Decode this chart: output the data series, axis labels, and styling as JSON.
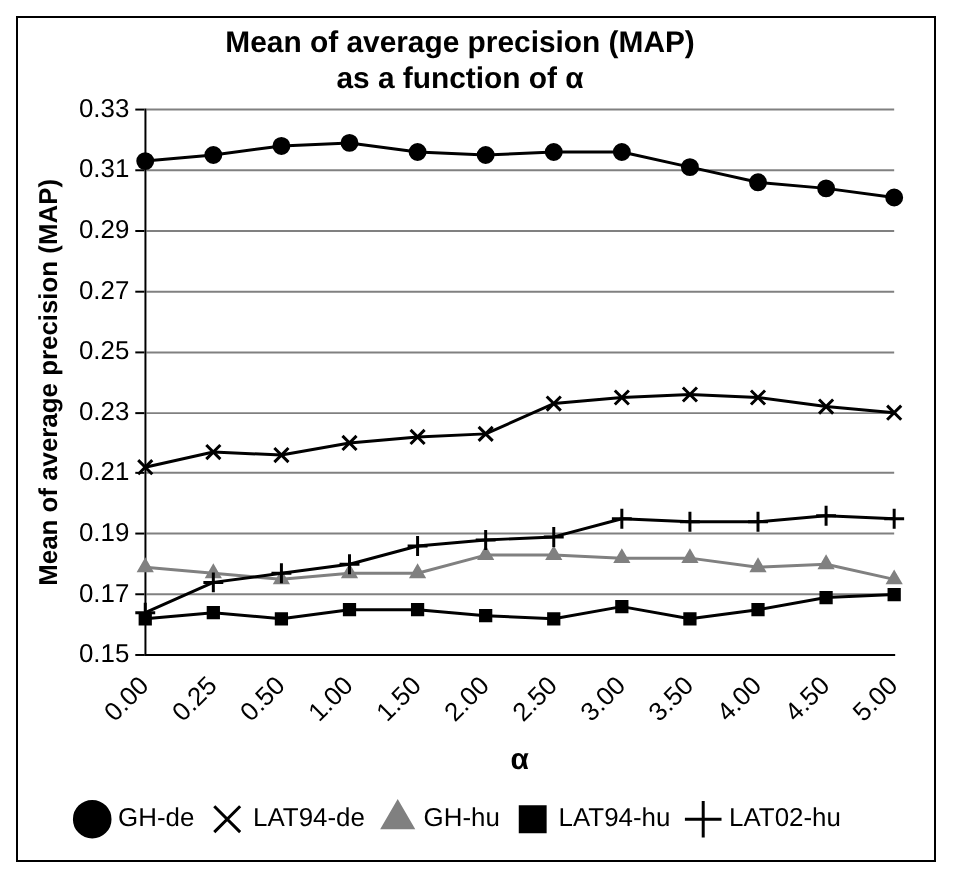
{
  "chart_data": {
    "type": "line",
    "title": "Mean of average precision (MAP)\nas a function of α",
    "xlabel": "α",
    "ylabel": "Mean of average precision (MAP)",
    "categories": [
      "0.00",
      "0.25",
      "0.50",
      "1.00",
      "1.50",
      "2.00",
      "2.50",
      "3.00",
      "3.50",
      "4.00",
      "4.50",
      "5.00"
    ],
    "ylim": [
      0.15,
      0.33
    ],
    "yticks": [
      0.15,
      0.17,
      0.19,
      0.21,
      0.23,
      0.25,
      0.27,
      0.29,
      0.31,
      0.33
    ],
    "grid": "y",
    "legend": "bottom",
    "series": [
      {
        "name": "GH-de",
        "color": "#000000",
        "marker": "circle",
        "values": [
          0.313,
          0.315,
          0.318,
          0.319,
          0.316,
          0.315,
          0.316,
          0.316,
          0.311,
          0.306,
          0.304,
          0.301
        ]
      },
      {
        "name": "LAT94-de",
        "color": "#000000",
        "marker": "cross",
        "values": [
          0.212,
          0.217,
          0.216,
          0.22,
          0.222,
          0.223,
          0.233,
          0.235,
          0.236,
          0.235,
          0.232,
          0.23
        ]
      },
      {
        "name": "GH-hu",
        "color": "#808080",
        "marker": "triangle",
        "values": [
          0.179,
          0.177,
          0.175,
          0.177,
          0.177,
          0.183,
          0.183,
          0.182,
          0.182,
          0.179,
          0.18,
          0.175
        ]
      },
      {
        "name": "LAT94-hu",
        "color": "#000000",
        "marker": "square",
        "values": [
          0.162,
          0.164,
          0.162,
          0.165,
          0.165,
          0.163,
          0.162,
          0.166,
          0.162,
          0.165,
          0.169,
          0.17
        ]
      },
      {
        "name": "LAT02-hu",
        "color": "#000000",
        "marker": "plus",
        "values": [
          0.164,
          0.174,
          0.177,
          0.18,
          0.186,
          0.188,
          0.189,
          0.195,
          0.194,
          0.194,
          0.196,
          0.195
        ]
      }
    ]
  }
}
